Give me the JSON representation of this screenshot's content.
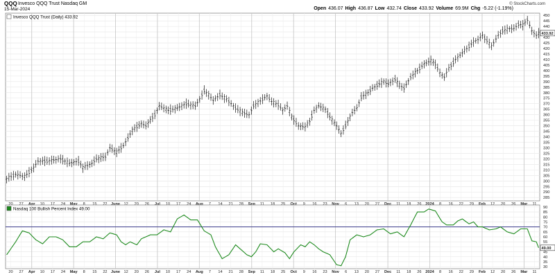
{
  "header": {
    "ticker": "QQQ",
    "description": "Invesco QQQ Trust  Nasdaq GM",
    "date": "15-Mar-2024",
    "ohlc": [
      {
        "k": "Open",
        "v": "436.07"
      },
      {
        "k": "High",
        "v": "436.87"
      },
      {
        "k": "Low",
        "v": "432.74"
      },
      {
        "k": "Close",
        "v": "433.92"
      },
      {
        "k": "Volume",
        "v": "69.9M"
      },
      {
        "k": "Chg",
        "v": "-5.22 (-1.19%)"
      }
    ],
    "credit": "© StockCharts.com"
  },
  "chart_data": [
    {
      "type": "ohlc",
      "legend": "Invesco QQQ Trust (Daily) 433.92",
      "last_value": "433.92",
      "ylim": [
        282,
        452
      ],
      "yticks": [
        285,
        290,
        295,
        300,
        305,
        310,
        315,
        320,
        325,
        330,
        335,
        340,
        345,
        350,
        355,
        360,
        365,
        370,
        375,
        380,
        385,
        390,
        395,
        400,
        405,
        410,
        415,
        420,
        425,
        430,
        435,
        440,
        445,
        450
      ],
      "anchors": [
        [
          0,
          302
        ],
        [
          4,
          306
        ],
        [
          8,
          304
        ],
        [
          12,
          312
        ],
        [
          14,
          318
        ],
        [
          18,
          318
        ],
        [
          24,
          320
        ],
        [
          28,
          316
        ],
        [
          32,
          318
        ],
        [
          34,
          312
        ],
        [
          38,
          316
        ],
        [
          40,
          320
        ],
        [
          44,
          322
        ],
        [
          46,
          330
        ],
        [
          49,
          326
        ],
        [
          52,
          332
        ],
        [
          56,
          346
        ],
        [
          60,
          352
        ],
        [
          62,
          350
        ],
        [
          66,
          360
        ],
        [
          68,
          368
        ],
        [
          72,
          364
        ],
        [
          76,
          366
        ],
        [
          80,
          370
        ],
        [
          84,
          368
        ],
        [
          86,
          374
        ],
        [
          88,
          382
        ],
        [
          90,
          378
        ],
        [
          92,
          373
        ],
        [
          95,
          378
        ],
        [
          98,
          374
        ],
        [
          102,
          366
        ],
        [
          105,
          362
        ],
        [
          108,
          360
        ],
        [
          110,
          368
        ],
        [
          114,
          374
        ],
        [
          116,
          377
        ],
        [
          118,
          372
        ],
        [
          121,
          369
        ],
        [
          123,
          364
        ],
        [
          125,
          368
        ],
        [
          127,
          358
        ],
        [
          130,
          350
        ],
        [
          133,
          349
        ],
        [
          135,
          354
        ],
        [
          137,
          364
        ],
        [
          139,
          368
        ],
        [
          142,
          365
        ],
        [
          144,
          358
        ],
        [
          147,
          350
        ],
        [
          149,
          343
        ],
        [
          151,
          350
        ],
        [
          154,
          362
        ],
        [
          156,
          366
        ],
        [
          158,
          376
        ],
        [
          161,
          380
        ],
        [
          163,
          384
        ],
        [
          166,
          388
        ],
        [
          168,
          390
        ],
        [
          170,
          388
        ],
        [
          173,
          392
        ],
        [
          175,
          387
        ],
        [
          177,
          384
        ],
        [
          180,
          394
        ],
        [
          183,
          400
        ],
        [
          186,
          406
        ],
        [
          189,
          409
        ],
        [
          191,
          406
        ],
        [
          193,
          398
        ],
        [
          195,
          394
        ],
        [
          197,
          402
        ],
        [
          200,
          410
        ],
        [
          202,
          414
        ],
        [
          204,
          418
        ],
        [
          206,
          422
        ],
        [
          208,
          426
        ],
        [
          210,
          428
        ],
        [
          212,
          432
        ],
        [
          214,
          427
        ],
        [
          216,
          422
        ],
        [
          219,
          432
        ],
        [
          221,
          436
        ],
        [
          224,
          438
        ],
        [
          226,
          438
        ],
        [
          228,
          442
        ],
        [
          230,
          441
        ],
        [
          232,
          446
        ],
        [
          234,
          436
        ],
        [
          236,
          432
        ],
        [
          237,
          433.92
        ]
      ]
    },
    {
      "type": "line",
      "legend": "Nasdaq 100 Bullish Percent Index 49.00",
      "last_value": "49.00",
      "ylim": [
        28,
        92
      ],
      "yticks": [
        30,
        35,
        40,
        45,
        50,
        55,
        60,
        65,
        70,
        75,
        80,
        85,
        90
      ],
      "reference_line": 70,
      "anchors": [
        [
          0,
          42
        ],
        [
          4,
          55
        ],
        [
          7,
          66
        ],
        [
          10,
          64
        ],
        [
          13,
          57
        ],
        [
          16,
          53
        ],
        [
          19,
          60
        ],
        [
          22,
          60
        ],
        [
          25,
          57
        ],
        [
          28,
          50
        ],
        [
          31,
          50
        ],
        [
          34,
          55
        ],
        [
          37,
          55
        ],
        [
          40,
          60
        ],
        [
          43,
          58
        ],
        [
          46,
          64
        ],
        [
          49,
          62
        ],
        [
          51,
          55
        ],
        [
          53,
          52
        ],
        [
          55,
          55
        ],
        [
          58,
          52
        ],
        [
          60,
          58
        ],
        [
          62,
          60
        ],
        [
          64,
          62
        ],
        [
          67,
          62
        ],
        [
          70,
          67
        ],
        [
          73,
          65
        ],
        [
          76,
          78
        ],
        [
          79,
          82
        ],
        [
          82,
          77
        ],
        [
          85,
          77
        ],
        [
          88,
          66
        ],
        [
          91,
          62
        ],
        [
          93,
          50
        ],
        [
          96,
          38
        ],
        [
          99,
          42
        ],
        [
          102,
          52
        ],
        [
          104,
          48
        ],
        [
          107,
          42
        ],
        [
          109,
          40
        ],
        [
          111,
          45
        ],
        [
          113,
          53
        ],
        [
          116,
          52
        ],
        [
          119,
          45
        ],
        [
          121,
          48
        ],
        [
          124,
          44
        ],
        [
          126,
          38
        ],
        [
          128,
          45
        ],
        [
          131,
          52
        ],
        [
          133,
          50
        ],
        [
          135,
          55
        ],
        [
          137,
          52
        ],
        [
          139,
          48
        ],
        [
          141,
          45
        ],
        [
          144,
          42
        ],
        [
          147,
          32
        ],
        [
          149,
          31
        ],
        [
          151,
          40
        ],
        [
          153,
          57
        ],
        [
          156,
          62
        ],
        [
          159,
          60
        ],
        [
          162,
          62
        ],
        [
          165,
          67
        ],
        [
          168,
          68
        ],
        [
          171,
          63
        ],
        [
          174,
          65
        ],
        [
          177,
          60
        ],
        [
          180,
          72
        ],
        [
          183,
          85
        ],
        [
          186,
          85
        ],
        [
          188,
          88
        ],
        [
          191,
          86
        ],
        [
          194,
          75
        ],
        [
          196,
          72
        ],
        [
          199,
          72
        ],
        [
          201,
          76
        ],
        [
          203,
          78
        ],
        [
          206,
          73
        ],
        [
          208,
          75
        ],
        [
          210,
          70
        ],
        [
          212,
          70
        ],
        [
          215,
          67
        ],
        [
          218,
          68
        ],
        [
          220,
          70
        ],
        [
          223,
          65
        ],
        [
          226,
          63
        ],
        [
          229,
          68
        ],
        [
          232,
          68
        ],
        [
          234,
          56
        ],
        [
          236,
          55
        ],
        [
          237,
          49
        ]
      ]
    }
  ],
  "x_axis": {
    "labels": [
      "20",
      "27",
      "Apr",
      "10",
      "17",
      "24",
      "May",
      "8",
      "15",
      "22",
      "June",
      "12",
      "20",
      "26",
      "Jul",
      "10",
      "17",
      "24",
      "Aug",
      "7",
      "14",
      "21",
      "28",
      "Sep",
      "11",
      "18",
      "25",
      "Oct",
      "9",
      "16",
      "23",
      "Nov",
      "6",
      "13",
      "20",
      "27",
      "Dec",
      "11",
      "18",
      "26",
      "2024",
      "8",
      "16",
      "22",
      "29",
      "Feb",
      "12",
      "20",
      "26",
      "Mar",
      "11"
    ]
  }
}
